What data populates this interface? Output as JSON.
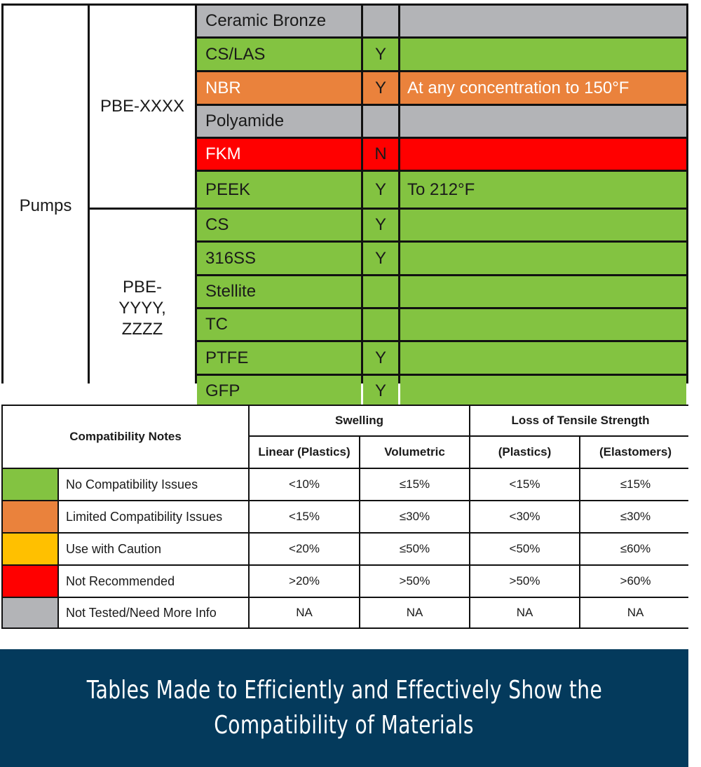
{
  "materials_table": {
    "category": "Pumps",
    "groups": [
      {
        "name": "PBE-XXXX"
      },
      {
        "name_lines": [
          "PBE-",
          "YYYY,",
          "ZZZZ"
        ]
      }
    ],
    "rows": [
      {
        "material": "Ceramic Bronze",
        "flag": "",
        "note": "",
        "color": "#b3b4b7"
      },
      {
        "material": "CS/LAS",
        "flag": "Y",
        "note": "",
        "color": "#83c341"
      },
      {
        "material": "NBR",
        "flag": "Y",
        "note": "At any concentration to 150°F",
        "color": "#ea823c"
      },
      {
        "material": "Polyamide",
        "flag": "",
        "note": "",
        "color": "#b3b4b7"
      },
      {
        "material": "FKM",
        "flag": "N",
        "note": "",
        "color": "#ff0000"
      },
      {
        "material": "PEEK",
        "flag": "Y",
        "note": "To 212°F",
        "color": "#83c341"
      },
      {
        "material": "CS",
        "flag": "Y",
        "note": "",
        "color": "#83c341"
      },
      {
        "material": "316SS",
        "flag": "Y",
        "note": "",
        "color": "#83c341"
      },
      {
        "material": "Stellite",
        "flag": "",
        "note": "",
        "color": "#83c341"
      },
      {
        "material": "TC",
        "flag": "",
        "note": "",
        "color": "#83c341"
      },
      {
        "material": "PTFE",
        "flag": "Y",
        "note": "",
        "color": "#83c341"
      },
      {
        "material": "GFP",
        "flag": "Y",
        "note": "",
        "color": "#83c341"
      }
    ]
  },
  "notes_table": {
    "title": "Compatibility Notes",
    "group_headers": [
      "Swelling",
      "Loss of Tensile Strength"
    ],
    "sub_headers": [
      "Linear (Plastics)",
      "Volumetric",
      "(Plastics)",
      "(Elastomers)"
    ],
    "rows": [
      {
        "label": "No Compatibility Issues",
        "color": "#83c341",
        "values": [
          "<10%",
          "≤15%",
          "<15%",
          "≤15%"
        ]
      },
      {
        "label": "Limited Compatibility Issues",
        "color": "#ea823c",
        "values": [
          "<15%",
          "≤30%",
          "<30%",
          "≤30%"
        ]
      },
      {
        "label": "Use with Caution",
        "color": "#ffc000",
        "values": [
          "<20%",
          "≤50%",
          "<50%",
          "≤60%"
        ]
      },
      {
        "label": "Not Recommended",
        "color": "#ff0000",
        "values": [
          ">20%",
          ">50%",
          ">50%",
          ">60%"
        ]
      },
      {
        "label": "Not Tested/Need More Info",
        "color": "#b3b4b7",
        "values": [
          "NA",
          "NA",
          "NA",
          "NA"
        ]
      }
    ]
  },
  "banner": {
    "lines": [
      "Tables Made to Efficiently and Effectively Show the",
      "Compatibility of Materials"
    ],
    "background": "#043a5c"
  }
}
